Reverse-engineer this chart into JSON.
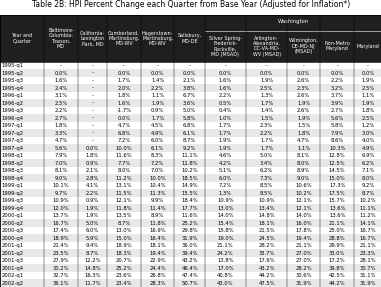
{
  "title": "Table 2B: HPI Percent Change each Quarter from Base Year (Adjusted for Inflation*)",
  "col_labels_row1": [
    "",
    "Baltimore-\nColumbia-\nTowson,\nMD",
    "California-\nLexington\nPark, MD",
    "Cumberland,\nMartinsburg,\nMD-WV",
    "Hagerstown-\nMartinsburg,\nMD-WV",
    "Salisbury,\nMD-DE",
    "Silver Spring-\nFrederick-\nRockville,\nMD (MSAD)",
    "Arlington-\nAlexandria,\nDC-VA-MD-\nWV (MSAD)",
    "Wilmington,\nDE-MD-NJ\n(MSAD)",
    "Non-Metro\nMaryland",
    "Maryland"
  ],
  "washington_label": "Washington",
  "rows": [
    [
      "1995-q1",
      "-",
      "-",
      "-",
      "-",
      "-",
      "-",
      "-",
      "-",
      "-",
      "-"
    ],
    [
      "1995-q2",
      "0.0%",
      "-",
      "0.0%",
      "0.0%",
      "0.0%",
      "0.0%",
      "0.0%",
      "0.0%",
      "0.0%",
      "0.0%"
    ],
    [
      "1995-q3",
      "1.6%",
      "-",
      "1.7%",
      "1.4%",
      "2.1%",
      "1.6%",
      "1.9%",
      "2.6%",
      "2.2%",
      "1.9%"
    ],
    [
      "1995-q4",
      "2.4%",
      "-",
      "2.0%",
      "2.2%",
      "3.8%",
      "1.6%",
      "2.5%",
      "2.3%",
      "3.2%",
      "2.5%"
    ],
    [
      "1996-q1",
      "3.1%",
      "-",
      "1.8%",
      "1.1%",
      "6.7%",
      "2.2%",
      "1.3%",
      "2.6%",
      "3.7%",
      "1.1%"
    ],
    [
      "1996-q2",
      "2.5%",
      "-",
      "1.6%",
      "1.9%",
      "3.6%",
      "0.5%",
      "1.7%",
      "1.9%",
      "3.9%",
      "1.9%"
    ],
    [
      "1996-q3",
      "2.2%",
      "-",
      "-1.7%",
      "0.9%",
      "5.0%",
      "0.4%",
      "1.4%",
      "2.6%",
      "2.7%",
      "1.8%"
    ],
    [
      "1996-q4",
      "2.7%",
      "-",
      "0.0%",
      "1.7%",
      "5.8%",
      "1.0%",
      "1.5%",
      "1.9%",
      "5.6%",
      "2.5%"
    ],
    [
      "1997-q1",
      "1.8%",
      "-",
      "4.7%",
      "4.5%",
      "6.8%",
      "1.7%",
      "2.3%",
      "1.5%",
      "5.8%",
      "1.2%"
    ],
    [
      "1997-q2",
      "3.3%",
      "-",
      "6.8%",
      "4.9%",
      "6.1%",
      "1.7%",
      "2.2%",
      "1.8%",
      "7.9%",
      "3.0%"
    ],
    [
      "1997-q3",
      "4.7%",
      "-",
      "7.2%",
      "6.0%",
      "8.7%",
      "1.9%",
      "1.7%",
      "4.7%",
      "8.6%",
      "4.0%"
    ],
    [
      "1997-q4",
      "5.6%",
      "0.0%",
      "10.0%",
      "6.1%",
      "9.2%",
      "1.9%",
      "1.7%",
      "1.1%",
      "10.3%",
      "4.9%"
    ],
    [
      "1998-q1",
      "7.9%",
      "1.8%",
      "11.6%",
      "8.3%",
      "11.1%",
      "4.6%",
      "5.0%",
      "8.1%",
      "12.8%",
      "6.9%"
    ],
    [
      "1998-q2",
      "7.0%",
      "0.9%",
      "7.7%",
      "7.2%",
      "11.8%",
      "4.2%",
      "3.4%",
      "8.0%",
      "12.5%",
      "6.2%"
    ],
    [
      "1998-q3",
      "8.1%",
      "2.1%",
      "8.0%",
      "7.0%",
      "10.2%",
      "5.1%",
      "6.2%",
      "8.9%",
      "14.5%",
      "7.1%"
    ],
    [
      "1998-q4",
      "9.0%",
      "2.8%",
      "11.2%",
      "10.0%",
      "18.5%",
      "6.0%",
      "7.3%",
      "9.0%",
      "15.0%",
      "8.0%"
    ],
    [
      "1999-q1",
      "10.1%",
      "4.1%",
      "13.1%",
      "10.4%",
      "14.9%",
      "7.2%",
      "8.5%",
      "10.6%",
      "17.3%",
      "9.2%"
    ],
    [
      "1999-q2",
      "9.7%",
      "2.2%",
      "11.5%",
      "11.3%",
      "15.5%",
      "1.3%",
      "8.5%",
      "10.2%",
      "17.5%",
      "8.7%"
    ],
    [
      "1999-q3",
      "10.9%",
      "0.9%",
      "12.1%",
      "9.9%",
      "18.4%",
      "10.9%",
      "10.9%",
      "12.1%",
      "15.7%",
      "10.2%"
    ],
    [
      "1999-q4",
      "12.0%",
      "1.9%",
      "11.8%",
      "11.4%",
      "17.7%",
      "13.0%",
      "13.4%",
      "12.1%",
      "13.6%",
      "11.1%"
    ],
    [
      "2000-q1",
      "13.7%",
      "1.9%",
      "13.5%",
      "8.9%",
      "11.6%",
      "14.0%",
      "14.8%",
      "14.0%",
      "13.6%",
      "11.2%"
    ],
    [
      "2000-q2",
      "16.7%",
      "5.0%",
      "8.7%",
      "11.8%",
      "25.2%",
      "15.4%",
      "18.1%",
      "16.0%",
      "21.1%",
      "14.1%"
    ],
    [
      "2000-q3",
      "17.4%",
      "6.0%",
      "13.0%",
      "16.9%",
      "29.8%",
      "15.8%",
      "21.5%",
      "17.8%",
      "25.0%",
      "16.7%"
    ],
    [
      "2000-q4",
      "18.9%",
      "5.9%",
      "15.0%",
      "16.4%",
      "31.9%",
      "19.0%",
      "24.5%",
      "19.4%",
      "28.8%",
      "16.7%"
    ],
    [
      "2001-q1",
      "21.4%",
      "9.4%",
      "18.9%",
      "18.1%",
      "36.0%",
      "21.1%",
      "28.2%",
      "21.1%",
      "29.9%",
      "21.1%"
    ],
    [
      "2001-q2",
      "23.5%",
      "8.7%",
      "18.3%",
      "19.4%",
      "39.4%",
      "24.2%",
      "33.7%",
      "27.0%",
      "33.0%",
      "23.3%"
    ],
    [
      "2001-q3",
      "27.9%",
      "12.2%",
      "20.7%",
      "22.9%",
      "43.2%",
      "13.8%",
      "17.6%",
      "27.0%",
      "17.2%",
      "28.1%"
    ],
    [
      "2001-q4",
      "30.2%",
      "14.8%",
      "25.2%",
      "24.4%",
      "46.4%",
      "17.0%",
      "43.2%",
      "28.2%",
      "39.8%",
      "30.7%"
    ],
    [
      "2002-q1",
      "32.7%",
      "16.3%",
      "23.6%",
      "26.8%",
      "47.4%",
      "40.8%",
      "44.2%",
      "30.6%",
      "42.5%",
      "31.1%"
    ],
    [
      "2002-q2",
      "36.1%",
      "11.7%",
      "23.4%",
      "28.3%",
      "50.7%",
      "43.0%",
      "47.5%",
      "31.9%",
      "44.2%",
      "31.9%"
    ]
  ],
  "header_bg": "#1f1f1f",
  "header_fg": "#ffffff",
  "row_bg_even": "#e8e8e8",
  "row_bg_odd": "#ffffff",
  "font_size": 3.8,
  "header_font_size": 3.5,
  "title_font_size": 5.5
}
